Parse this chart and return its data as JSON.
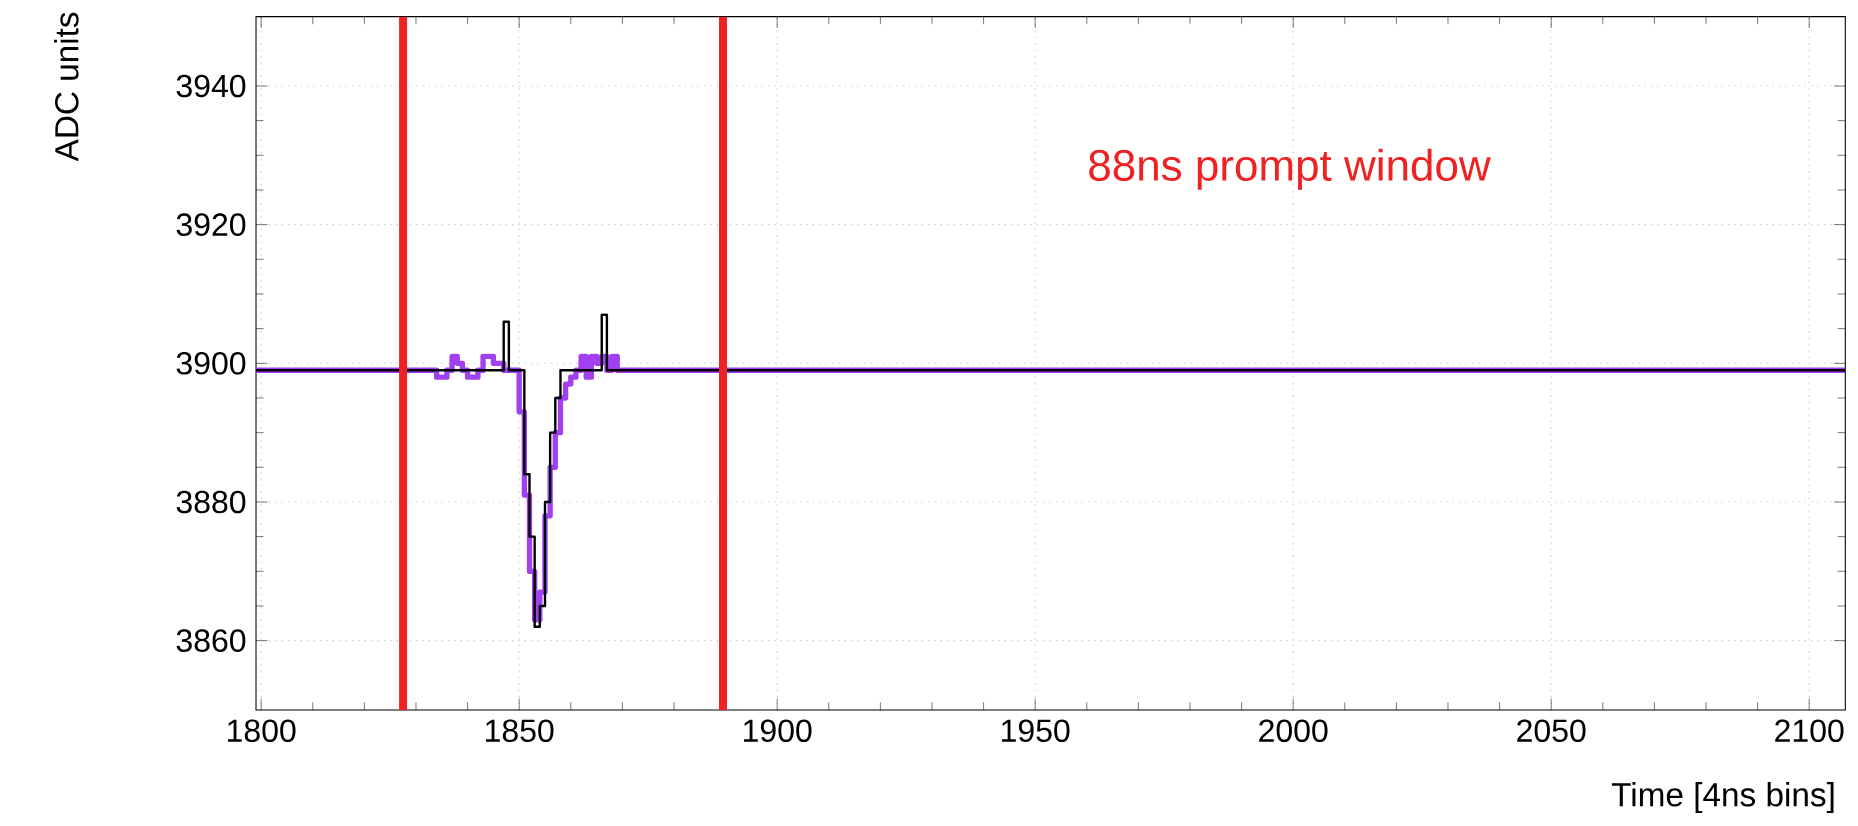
{
  "chart_data": {
    "type": "step",
    "xlabel": "Time [4ns bins]",
    "ylabel": "ADC units",
    "annotations": [
      "88ns prompt window"
    ],
    "xlim": [
      1799,
      2107
    ],
    "ylim": [
      3850,
      3950
    ],
    "xticks": [
      1800,
      1850,
      1900,
      1950,
      2000,
      2050,
      2100
    ],
    "yticks": [
      3860,
      3880,
      3900,
      3920,
      3940
    ],
    "grid": true,
    "ref_lines": [
      {
        "axis": "x",
        "value": 1827.5,
        "color": "#ee2222"
      },
      {
        "axis": "x",
        "value": 1889.5,
        "color": "#ee2222"
      }
    ],
    "series": [
      {
        "color": "#000000",
        "x": [
          1799,
          1846,
          1847,
          1848,
          1851,
          1852,
          1853,
          1854,
          1855,
          1856,
          1857,
          1858,
          1866,
          1867,
          2107
        ],
        "values": [
          3899,
          3899,
          3906,
          3899,
          3884,
          3875,
          3862,
          3865,
          3880,
          3890,
          3895,
          3899,
          3907,
          3899,
          3899
        ]
      },
      {
        "color": "#a040f0",
        "x": [
          1799,
          1834,
          1836,
          1837,
          1838,
          1839,
          1840,
          1842,
          1843,
          1845,
          1847,
          1850,
          1851,
          1852,
          1853,
          1854,
          1855,
          1856,
          1857,
          1858,
          1859,
          1860,
          1861,
          1862,
          1863,
          1864,
          1865,
          1866,
          1867,
          1868,
          1869,
          2107
        ],
        "values": [
          3899,
          3898,
          3899,
          3901,
          3900,
          3899,
          3898,
          3899,
          3901,
          3900,
          3899,
          3893,
          3881,
          3870,
          3863,
          3867,
          3878,
          3885,
          3890,
          3895,
          3897,
          3898,
          3899,
          3901,
          3898,
          3901,
          3900,
          3901,
          3899,
          3901,
          3899,
          3899
        ]
      }
    ]
  }
}
